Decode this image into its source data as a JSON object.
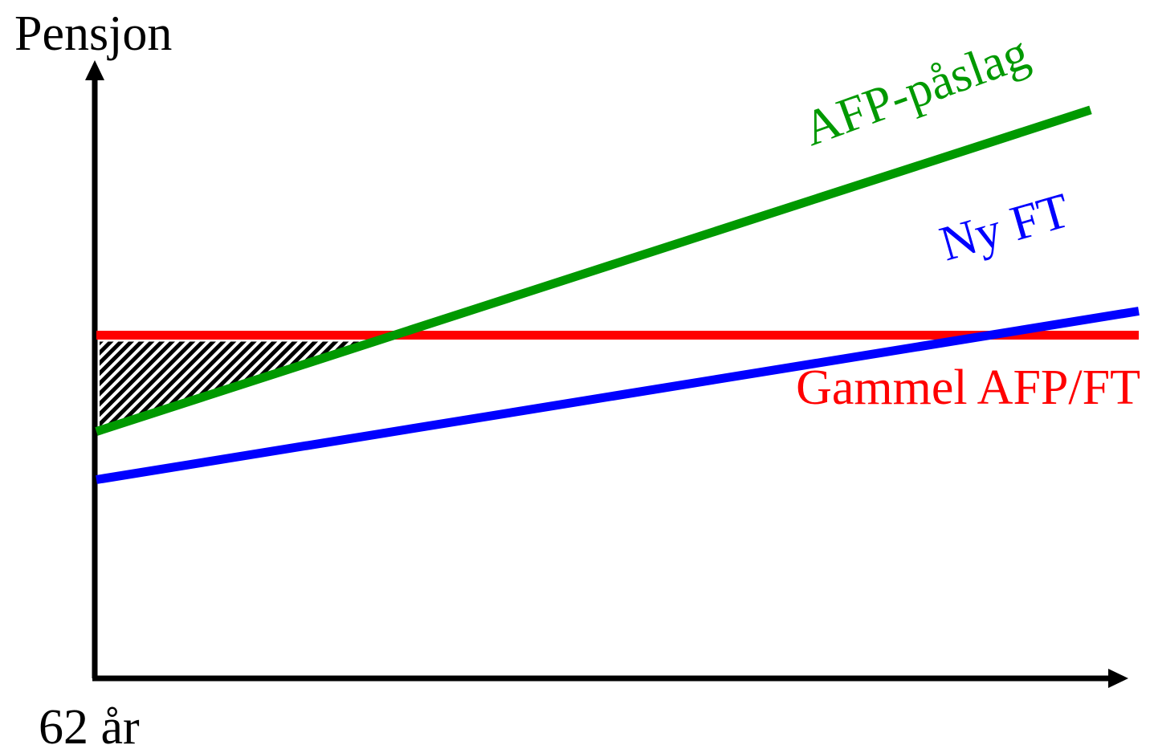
{
  "diagram": {
    "y_axis_label": "Pensjon",
    "x_axis_label": "62 år"
  },
  "colors": {
    "old": "#ff0000",
    "new_ft": "#0000ff",
    "afp": "#009900",
    "axis": "#000000",
    "hatch": "#000000"
  },
  "chart_data": {
    "type": "line",
    "xlabel": "62 år",
    "ylabel": "Pensjon",
    "series": [
      {
        "name": "Gammel AFP/FT",
        "x": [
          0,
          1
        ],
        "y": [
          0.57,
          0.57
        ]
      },
      {
        "name": "Ny FT",
        "x": [
          0,
          1
        ],
        "y": [
          0.33,
          0.61
        ]
      },
      {
        "name": "AFP-påslag",
        "x": [
          0,
          1
        ],
        "y": [
          0.41,
          0.97
        ]
      }
    ],
    "shaded_region": "between Gammel AFP/FT and AFP-påslag, before the lines cross"
  }
}
